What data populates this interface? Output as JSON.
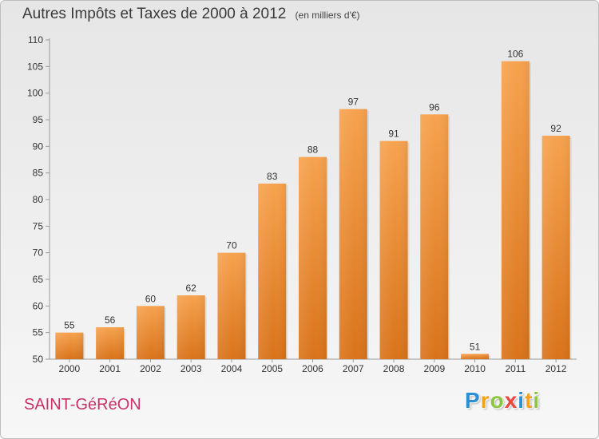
{
  "title": "Autres Impôts et Taxes de 2000 à 2012",
  "unit_note": "(en milliers d'€)",
  "commune": "SAINT-GéRéON",
  "logo": {
    "letters": [
      "P",
      "r",
      "o",
      "x",
      "i",
      "t",
      "i"
    ],
    "colors": [
      "#2b8fd6",
      "#f2a01f",
      "#8cc63e",
      "#e8473f",
      "#2b8fd6",
      "#f2a01f",
      "#8cc63e"
    ]
  },
  "chart_data": {
    "type": "bar",
    "categories": [
      "2000",
      "2001",
      "2002",
      "2003",
      "2004",
      "2005",
      "2006",
      "2007",
      "2008",
      "2009",
      "2010",
      "2011",
      "2012"
    ],
    "values": [
      55,
      56,
      60,
      62,
      70,
      83,
      88,
      97,
      91,
      96,
      51,
      106,
      92
    ],
    "ylim": [
      50,
      110
    ],
    "yticks": [
      50,
      55,
      60,
      65,
      70,
      75,
      80,
      85,
      90,
      95,
      100,
      105,
      110
    ],
    "bar_color": "#f0943a",
    "grid": false,
    "xlabel": "",
    "ylabel": ""
  }
}
